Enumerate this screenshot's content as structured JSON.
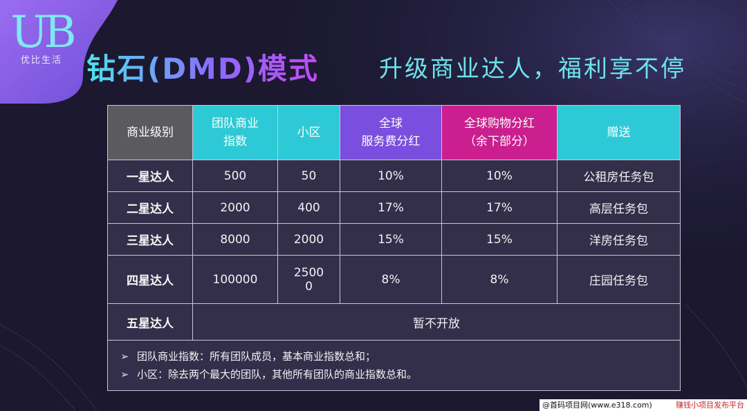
{
  "logo": {
    "mark": "UB",
    "sub": "优比生活"
  },
  "title": "钻石(DMD)模式",
  "subtitle": "升级商业达人，福利享不停",
  "table": {
    "headers": {
      "level": "商业级别",
      "team_line1": "团队商业",
      "team_line2": "指数",
      "small": "小区",
      "service_line1": "全球",
      "service_line2": "服务费分红",
      "shopping_line1": "全球购物分红",
      "shopping_line2": "（余下部分）",
      "gift": "赠送"
    },
    "rows": [
      {
        "level": "一星达人",
        "team": "500",
        "small": "50",
        "service": "10%",
        "shopping": "10%",
        "gift": "公租房任务包"
      },
      {
        "level": "二星达人",
        "team": "2000",
        "small": "400",
        "service": "17%",
        "shopping": "17%",
        "gift": "高层任务包"
      },
      {
        "level": "三星达人",
        "team": "8000",
        "small": "2000",
        "service": "15%",
        "shopping": "15%",
        "gift": "洋房任务包"
      },
      {
        "level": "四星达人",
        "team": "100000",
        "small_line1": "2500",
        "small_line2": "0",
        "service": "8%",
        "shopping": "8%",
        "gift": "庄园任务包"
      }
    ],
    "row5": {
      "level": "五星达人",
      "status": "暂不开放"
    },
    "notes": {
      "bullet": "➢",
      "line1": "团队商业指数：所有团队成员，基本商业指数总和；",
      "line2": "小区：除去两个最大的团队，其他所有团队的商业指数总和。"
    }
  },
  "footer": {
    "left": "@首码项目网(www.e318.com)",
    "right": "赚钱小项目发布平台"
  },
  "colors": {
    "cyan": "#2ec9d6",
    "purple": "#7a4fe0",
    "magenta": "#cc1f8f",
    "gray": "#5a5a5f"
  }
}
